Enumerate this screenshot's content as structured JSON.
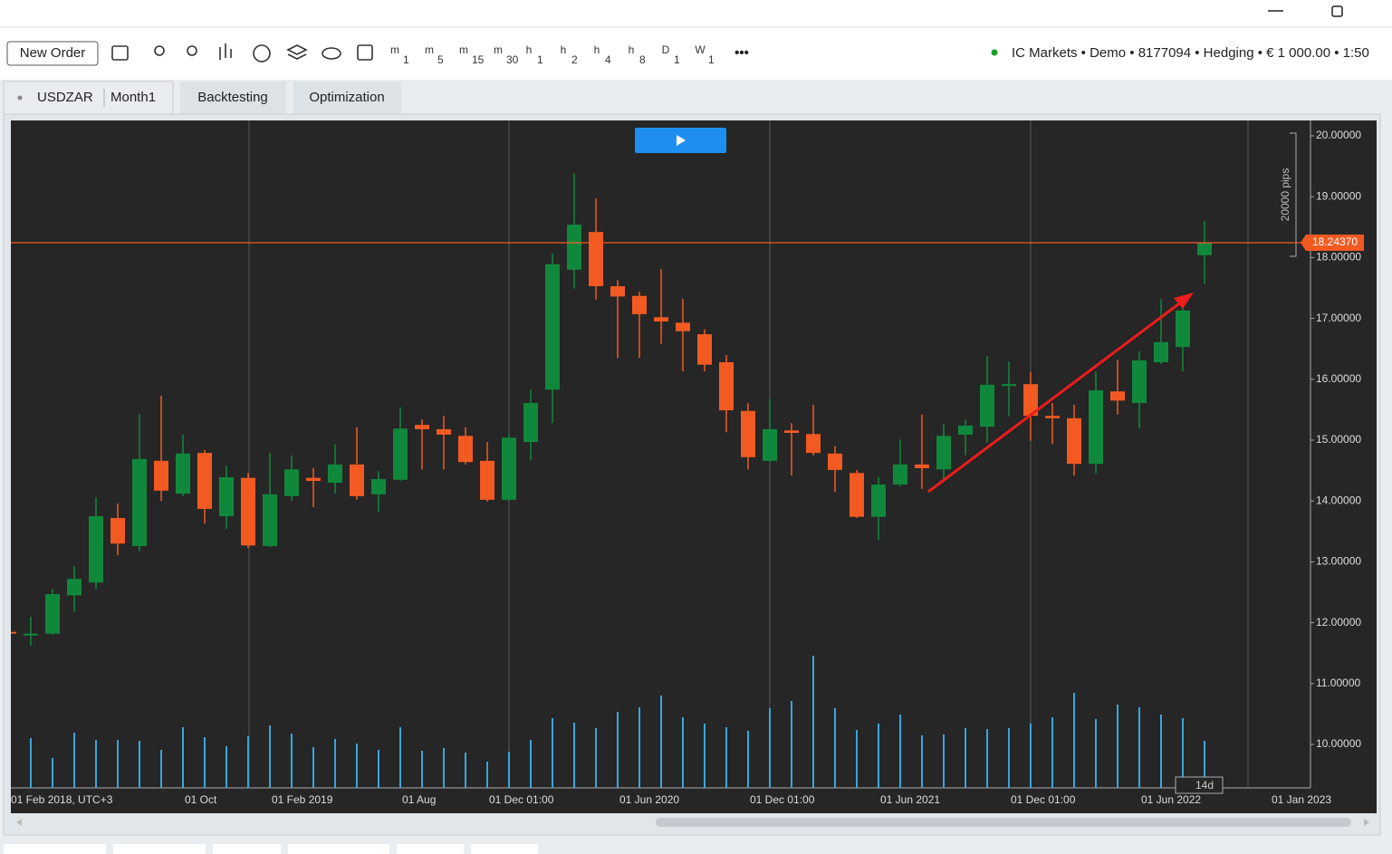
{
  "ui": {
    "new_order": "New Order",
    "timeframes": [
      {
        "label": "m",
        "sub": "1"
      },
      {
        "label": "m",
        "sub": "5"
      },
      {
        "label": "m",
        "sub": "15"
      },
      {
        "label": "m",
        "sub": "30"
      },
      {
        "label": "h",
        "sub": "1"
      },
      {
        "label": "h",
        "sub": "2"
      },
      {
        "label": "h",
        "sub": "4"
      },
      {
        "label": "h",
        "sub": "8"
      },
      {
        "label": "D",
        "sub": "1"
      },
      {
        "label": "W",
        "sub": "1"
      }
    ],
    "more": "•••",
    "account": "IC Markets • Demo • 8177094 • Hedging • € 1 000.00 • 1:50",
    "symbol": "USDZAR",
    "period": "Month1",
    "tabs": [
      "Backtesting",
      "Optimization"
    ]
  },
  "chart_data": {
    "type": "candlestick",
    "categories": [
      "01 Feb 2018, UTC+3",
      null,
      null,
      null,
      null,
      null,
      null,
      null,
      "01 Oct",
      null,
      null,
      null,
      "01 Feb 2019",
      null,
      null,
      null,
      null,
      null,
      "01 Aug",
      null,
      null,
      null,
      "01 Dec 01:00",
      null,
      null,
      null,
      null,
      null,
      "01 Jun 2020",
      null,
      null,
      null,
      null,
      null,
      "01 Dec 01:00",
      null,
      null,
      null,
      null,
      null,
      "01 Jun 2021",
      null,
      null,
      null,
      null,
      null,
      "01 Dec 01:00",
      null,
      null,
      null,
      null,
      null,
      "01 Jun 2022",
      null,
      null,
      null,
      null,
      null,
      null,
      "01 Jan 2023"
    ],
    "open": [
      11.85,
      11.8,
      11.82,
      12.45,
      12.66,
      13.72,
      13.26,
      14.66,
      14.12,
      14.79,
      13.75,
      14.38,
      13.26,
      14.08,
      14.38,
      14.3,
      14.6,
      14.11,
      14.35,
      15.25,
      15.18,
      15.07,
      14.66,
      14.02,
      14.97,
      15.83,
      17.8,
      18.42,
      17.53,
      17.37,
      17.02,
      16.93,
      16.74,
      16.28,
      15.48,
      14.66,
      15.16,
      15.1,
      14.78,
      14.46,
      13.74,
      14.27,
      14.6,
      14.52,
      15.09,
      15.22,
      15.9,
      15.92,
      15.4,
      15.36,
      14.61,
      15.8,
      15.61,
      16.28,
      16.53,
      18.04,
      null,
      null,
      null,
      null
    ],
    "high": [
      11.86,
      12.1,
      12.55,
      12.93,
      14.06,
      13.96,
      15.43,
      15.73,
      15.09,
      14.84,
      14.58,
      14.46,
      14.79,
      14.75,
      14.54,
      14.93,
      15.21,
      14.49,
      15.54,
      15.34,
      15.4,
      15.21,
      14.97,
      15.1,
      15.83,
      18.07,
      19.38,
      18.97,
      17.63,
      17.44,
      17.81,
      17.32,
      16.82,
      16.4,
      15.61,
      15.68,
      15.28,
      15.58,
      14.9,
      14.51,
      14.4,
      15.01,
      15.42,
      15.27,
      15.34,
      16.38,
      16.29,
      16.12,
      15.61,
      15.58,
      16.13,
      16.32,
      16.46,
      17.32,
      17.32,
      18.6,
      null,
      null,
      null,
      null
    ],
    "low": [
      11.8,
      11.62,
      11.8,
      12.18,
      12.55,
      13.11,
      13.17,
      14.0,
      14.08,
      13.63,
      13.54,
      13.23,
      13.24,
      14.0,
      13.9,
      14.12,
      14.02,
      13.82,
      14.33,
      14.52,
      14.52,
      14.6,
      13.99,
      13.99,
      14.67,
      15.28,
      17.49,
      17.31,
      16.35,
      16.35,
      16.58,
      16.13,
      16.13,
      15.13,
      14.52,
      14.64,
      14.42,
      14.75,
      14.15,
      13.72,
      13.36,
      14.24,
      14.2,
      14.32,
      14.75,
      14.96,
      15.39,
      14.99,
      14.94,
      14.42,
      14.45,
      15.42,
      15.19,
      16.25,
      16.13,
      17.57,
      null,
      null,
      null,
      null
    ],
    "close": [
      11.82,
      11.82,
      12.47,
      12.72,
      13.75,
      13.3,
      14.69,
      14.17,
      14.78,
      13.87,
      14.39,
      13.27,
      14.11,
      14.52,
      14.33,
      14.6,
      14.08,
      14.36,
      15.19,
      15.18,
      15.09,
      14.64,
      14.02,
      15.04,
      15.61,
      17.89,
      18.54,
      17.53,
      17.36,
      17.07,
      16.95,
      16.79,
      16.24,
      15.49,
      14.72,
      15.18,
      15.12,
      14.79,
      14.51,
      13.74,
      14.27,
      14.6,
      14.54,
      15.07,
      15.24,
      15.91,
      15.92,
      15.4,
      15.36,
      14.61,
      15.82,
      15.65,
      16.31,
      16.61,
      17.13,
      18.2437,
      null,
      null,
      null,
      null
    ],
    "volume": [
      null,
      55,
      33,
      61,
      53,
      53,
      52,
      42,
      67,
      56,
      46,
      57,
      69,
      60,
      45,
      54,
      49,
      42,
      67,
      41,
      44,
      39,
      29,
      40,
      53,
      77,
      72,
      66,
      84,
      89,
      102,
      78,
      71,
      67,
      63,
      88,
      96,
      146,
      88,
      64,
      71,
      81,
      58,
      59,
      66,
      65,
      66,
      71,
      78,
      105,
      76,
      92,
      89,
      81,
      77,
      52,
      null,
      null,
      null,
      null
    ],
    "up_color": "#10883c",
    "down_color": "#f25a22",
    "volume_color": "#38a6dc",
    "ylim": [
      9.286,
      20.253
    ],
    "yticks": [
      {
        "value": 10,
        "label": "10.00000"
      },
      {
        "value": 11,
        "label": "11.00000"
      },
      {
        "value": 12,
        "label": "12.00000"
      },
      {
        "value": 13,
        "label": "13.00000"
      },
      {
        "value": 14,
        "label": "14.00000"
      },
      {
        "value": 15,
        "label": "15.00000"
      },
      {
        "value": 16,
        "label": "16.00000"
      },
      {
        "value": 17,
        "label": "17.00000"
      },
      {
        "value": 18,
        "label": "18.00000"
      },
      {
        "value": 19,
        "label": "19.00000"
      },
      {
        "value": 20,
        "label": "20.00000"
      }
    ],
    "volume_ylim": [
      0,
      737
    ],
    "price_line": {
      "value": 18.2437,
      "label": "18.24370",
      "color": "#f25a22"
    },
    "range_label": "20000 pips",
    "duration_label": "14d",
    "grid": false
  }
}
